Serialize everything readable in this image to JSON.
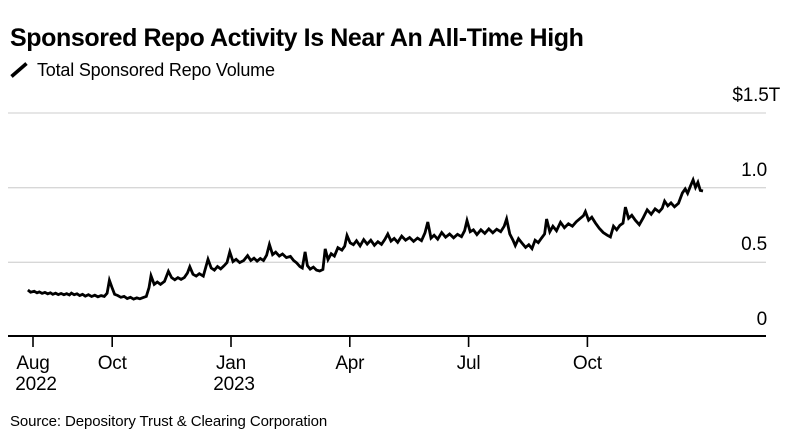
{
  "header": {
    "title": "Sponsored Repo Activity Is Near An All-Time High",
    "legend": {
      "marker": "line-slash-icon",
      "series_label": "Total Sponsored Repo Volume"
    }
  },
  "footer": {
    "source": "Source: Depository Trust & Clearing Corporation"
  },
  "colors": {
    "line": "#000000",
    "axis": "#000000",
    "grid": "#d7d7d7",
    "text": "#000000",
    "background": "#ffffff"
  },
  "chart_data": {
    "type": "line",
    "title": "Sponsored Repo Activity Is Near An All-Time High",
    "ylabel": "",
    "xlabel": "",
    "ylim": [
      0,
      1.5
    ],
    "y_unit": "trillions USD",
    "grid": "horizontal",
    "legend_position": "top-left",
    "y_ticks": [
      {
        "value": 0,
        "label": "0"
      },
      {
        "value": 0.5,
        "label": "0.5"
      },
      {
        "value": 1.0,
        "label": "1.0"
      },
      {
        "value": 1.5,
        "label": "$1.5T"
      }
    ],
    "x_unit": "months since 2022-08-01",
    "x_ticks": [
      {
        "m": 0,
        "label": "Aug",
        "year": "2022"
      },
      {
        "m": 2,
        "label": "Oct"
      },
      {
        "m": 5,
        "label": "Jan",
        "year": "2023"
      },
      {
        "m": 8,
        "label": "Apr"
      },
      {
        "m": 11,
        "label": "Jul"
      },
      {
        "m": 14,
        "label": "Oct"
      }
    ],
    "series": [
      {
        "name": "Total Sponsored Repo Volume",
        "color": "#000000",
        "points": [
          [
            -0.13,
            0.315
          ],
          [
            -0.06,
            0.3
          ],
          [
            0.03,
            0.306
          ],
          [
            0.1,
            0.296
          ],
          [
            0.16,
            0.302
          ],
          [
            0.23,
            0.292
          ],
          [
            0.3,
            0.299
          ],
          [
            0.37,
            0.289
          ],
          [
            0.44,
            0.296
          ],
          [
            0.5,
            0.286
          ],
          [
            0.57,
            0.293
          ],
          [
            0.64,
            0.284
          ],
          [
            0.71,
            0.291
          ],
          [
            0.78,
            0.283
          ],
          [
            0.85,
            0.29
          ],
          [
            0.92,
            0.281
          ],
          [
            0.97,
            0.294
          ],
          [
            1.04,
            0.283
          ],
          [
            1.11,
            0.289
          ],
          [
            1.18,
            0.278
          ],
          [
            1.25,
            0.286
          ],
          [
            1.32,
            0.274
          ],
          [
            1.4,
            0.283
          ],
          [
            1.48,
            0.271
          ],
          [
            1.56,
            0.28
          ],
          [
            1.64,
            0.269
          ],
          [
            1.72,
            0.277
          ],
          [
            1.8,
            0.272
          ],
          [
            1.87,
            0.293
          ],
          [
            1.93,
            0.38
          ],
          [
            1.99,
            0.335
          ],
          [
            2.06,
            0.286
          ],
          [
            2.14,
            0.278
          ],
          [
            2.22,
            0.266
          ],
          [
            2.3,
            0.272
          ],
          [
            2.38,
            0.258
          ],
          [
            2.46,
            0.266
          ],
          [
            2.54,
            0.254
          ],
          [
            2.62,
            0.262
          ],
          [
            2.7,
            0.256
          ],
          [
            2.78,
            0.264
          ],
          [
            2.86,
            0.272
          ],
          [
            2.93,
            0.33
          ],
          [
            2.98,
            0.41
          ],
          [
            3.06,
            0.352
          ],
          [
            3.14,
            0.368
          ],
          [
            3.22,
            0.352
          ],
          [
            3.32,
            0.372
          ],
          [
            3.42,
            0.44
          ],
          [
            3.5,
            0.398
          ],
          [
            3.58,
            0.383
          ],
          [
            3.66,
            0.398
          ],
          [
            3.74,
            0.386
          ],
          [
            3.82,
            0.398
          ],
          [
            3.9,
            0.428
          ],
          [
            3.96,
            0.47
          ],
          [
            4.04,
            0.42
          ],
          [
            4.12,
            0.408
          ],
          [
            4.2,
            0.424
          ],
          [
            4.3,
            0.408
          ],
          [
            4.42,
            0.52
          ],
          [
            4.5,
            0.462
          ],
          [
            4.58,
            0.448
          ],
          [
            4.66,
            0.472
          ],
          [
            4.74,
            0.456
          ],
          [
            4.82,
            0.476
          ],
          [
            4.9,
            0.498
          ],
          [
            4.97,
            0.57
          ],
          [
            5.05,
            0.505
          ],
          [
            5.13,
            0.52
          ],
          [
            5.22,
            0.498
          ],
          [
            5.32,
            0.512
          ],
          [
            5.42,
            0.545
          ],
          [
            5.5,
            0.512
          ],
          [
            5.58,
            0.528
          ],
          [
            5.66,
            0.508
          ],
          [
            5.74,
            0.526
          ],
          [
            5.82,
            0.512
          ],
          [
            5.9,
            0.548
          ],
          [
            5.97,
            0.62
          ],
          [
            6.05,
            0.552
          ],
          [
            6.13,
            0.568
          ],
          [
            6.22,
            0.542
          ],
          [
            6.3,
            0.556
          ],
          [
            6.4,
            0.532
          ],
          [
            6.5,
            0.54
          ],
          [
            6.58,
            0.512
          ],
          [
            6.66,
            0.496
          ],
          [
            6.74,
            0.472
          ],
          [
            6.8,
            0.462
          ],
          [
            6.87,
            0.57
          ],
          [
            6.93,
            0.478
          ],
          [
            7.0,
            0.455
          ],
          [
            7.08,
            0.468
          ],
          [
            7.16,
            0.448
          ],
          [
            7.24,
            0.442
          ],
          [
            7.32,
            0.452
          ],
          [
            7.38,
            0.59
          ],
          [
            7.45,
            0.518
          ],
          [
            7.53,
            0.558
          ],
          [
            7.61,
            0.542
          ],
          [
            7.7,
            0.598
          ],
          [
            7.8,
            0.582
          ],
          [
            7.87,
            0.608
          ],
          [
            7.93,
            0.68
          ],
          [
            8.01,
            0.63
          ],
          [
            8.09,
            0.618
          ],
          [
            8.17,
            0.645
          ],
          [
            8.26,
            0.61
          ],
          [
            8.35,
            0.652
          ],
          [
            8.44,
            0.622
          ],
          [
            8.53,
            0.648
          ],
          [
            8.62,
            0.614
          ],
          [
            8.71,
            0.638
          ],
          [
            8.8,
            0.62
          ],
          [
            8.89,
            0.655
          ],
          [
            8.96,
            0.69
          ],
          [
            9.04,
            0.642
          ],
          [
            9.12,
            0.66
          ],
          [
            9.21,
            0.634
          ],
          [
            9.31,
            0.676
          ],
          [
            9.41,
            0.648
          ],
          [
            9.51,
            0.666
          ],
          [
            9.61,
            0.64
          ],
          [
            9.71,
            0.662
          ],
          [
            9.81,
            0.645
          ],
          [
            9.9,
            0.698
          ],
          [
            9.97,
            0.77
          ],
          [
            10.05,
            0.662
          ],
          [
            10.13,
            0.682
          ],
          [
            10.22,
            0.655
          ],
          [
            10.32,
            0.7
          ],
          [
            10.42,
            0.668
          ],
          [
            10.52,
            0.69
          ],
          [
            10.62,
            0.664
          ],
          [
            10.72,
            0.688
          ],
          [
            10.82,
            0.672
          ],
          [
            10.9,
            0.712
          ],
          [
            10.96,
            0.78
          ],
          [
            11.04,
            0.705
          ],
          [
            11.12,
            0.718
          ],
          [
            11.21,
            0.686
          ],
          [
            11.31,
            0.718
          ],
          [
            11.41,
            0.694
          ],
          [
            11.51,
            0.724
          ],
          [
            11.61,
            0.698
          ],
          [
            11.71,
            0.722
          ],
          [
            11.81,
            0.705
          ],
          [
            11.9,
            0.742
          ],
          [
            11.96,
            0.79
          ],
          [
            12.04,
            0.69
          ],
          [
            12.12,
            0.648
          ],
          [
            12.18,
            0.612
          ],
          [
            12.26,
            0.658
          ],
          [
            12.35,
            0.628
          ],
          [
            12.44,
            0.6
          ],
          [
            12.52,
            0.618
          ],
          [
            12.6,
            0.592
          ],
          [
            12.68,
            0.648
          ],
          [
            12.76,
            0.632
          ],
          [
            12.84,
            0.662
          ],
          [
            12.92,
            0.69
          ],
          [
            12.97,
            0.79
          ],
          [
            13.05,
            0.705
          ],
          [
            13.13,
            0.742
          ],
          [
            13.22,
            0.712
          ],
          [
            13.32,
            0.768
          ],
          [
            13.42,
            0.732
          ],
          [
            13.52,
            0.758
          ],
          [
            13.62,
            0.742
          ],
          [
            13.72,
            0.772
          ],
          [
            13.82,
            0.795
          ],
          [
            13.9,
            0.812
          ],
          [
            13.95,
            0.84
          ],
          [
            14.03,
            0.782
          ],
          [
            14.11,
            0.802
          ],
          [
            14.2,
            0.765
          ],
          [
            14.3,
            0.728
          ],
          [
            14.4,
            0.7
          ],
          [
            14.5,
            0.682
          ],
          [
            14.58,
            0.67
          ],
          [
            14.66,
            0.742
          ],
          [
            14.74,
            0.718
          ],
          [
            14.82,
            0.748
          ],
          [
            14.9,
            0.762
          ],
          [
            14.96,
            0.87
          ],
          [
            15.04,
            0.795
          ],
          [
            15.12,
            0.815
          ],
          [
            15.21,
            0.782
          ],
          [
            15.31,
            0.752
          ],
          [
            15.41,
            0.798
          ],
          [
            15.51,
            0.852
          ],
          [
            15.61,
            0.822
          ],
          [
            15.71,
            0.858
          ],
          [
            15.81,
            0.838
          ],
          [
            15.89,
            0.862
          ],
          [
            15.95,
            0.91
          ],
          [
            16.03,
            0.878
          ],
          [
            16.11,
            0.898
          ],
          [
            16.2,
            0.872
          ],
          [
            16.3,
            0.895
          ],
          [
            16.4,
            0.965
          ],
          [
            16.47,
            0.992
          ],
          [
            16.53,
            0.962
          ],
          [
            16.6,
            1.01
          ],
          [
            16.67,
            1.052
          ],
          [
            16.73,
            1.002
          ],
          [
            16.79,
            1.035
          ],
          [
            16.85,
            0.982
          ],
          [
            16.92,
            0.978
          ]
        ]
      }
    ]
  }
}
